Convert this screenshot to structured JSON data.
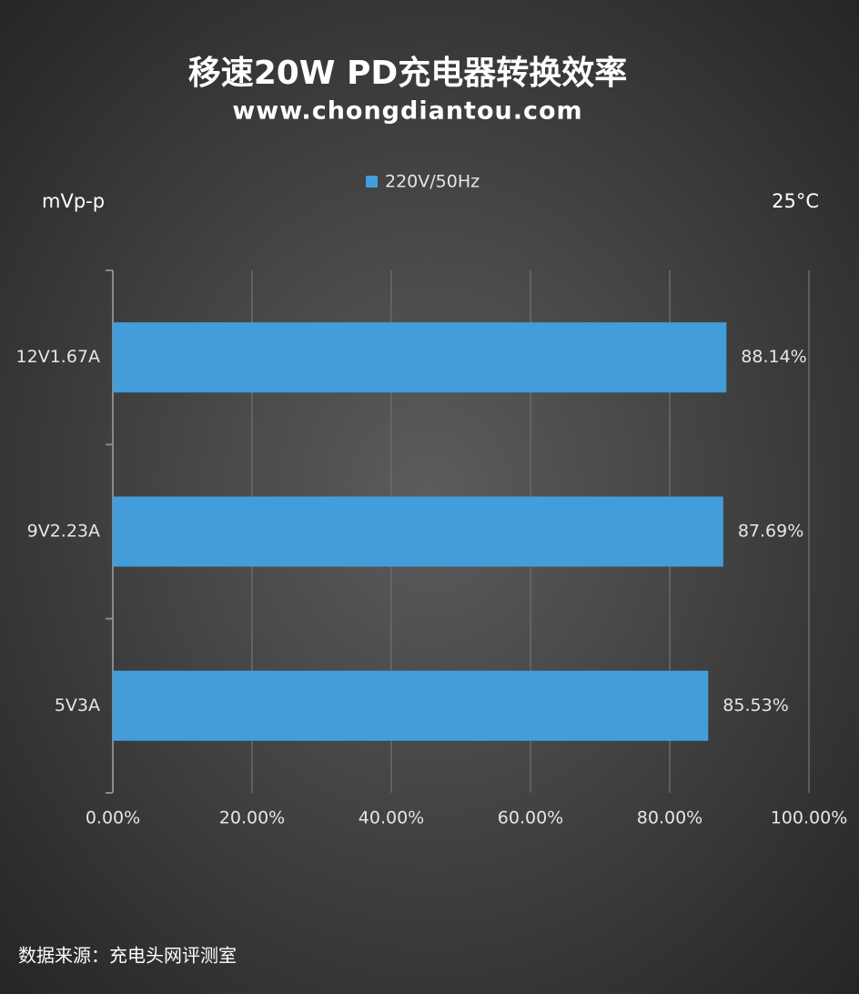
{
  "chart_data": {
    "type": "bar",
    "orientation": "horizontal",
    "title": "移速20W PD充电器转换效率",
    "subtitle": "www.chongdiantou.com",
    "annotations": [
      "mVp-p",
      "25°C"
    ],
    "source": "数据来源：充电头网评测室",
    "categories": [
      "12V1.67A",
      "9V2.23A",
      "5V3A"
    ],
    "series": [
      {
        "name": "220V/50Hz",
        "color": "#439ddb",
        "values": [
          88.14,
          87.69,
          85.53
        ],
        "value_labels": [
          "88.14%",
          "87.69%",
          "85.53%"
        ]
      }
    ],
    "xlim": [
      0,
      100
    ],
    "xticks": [
      {
        "value": 0,
        "label": "0.00%"
      },
      {
        "value": 20,
        "label": "20.00%"
      },
      {
        "value": 40,
        "label": "40.00%"
      },
      {
        "value": 60,
        "label": "60.00%"
      },
      {
        "value": 80,
        "label": "80.00%"
      },
      {
        "value": 100,
        "label": "100.00%"
      }
    ],
    "grid": true,
    "legend": "top"
  }
}
